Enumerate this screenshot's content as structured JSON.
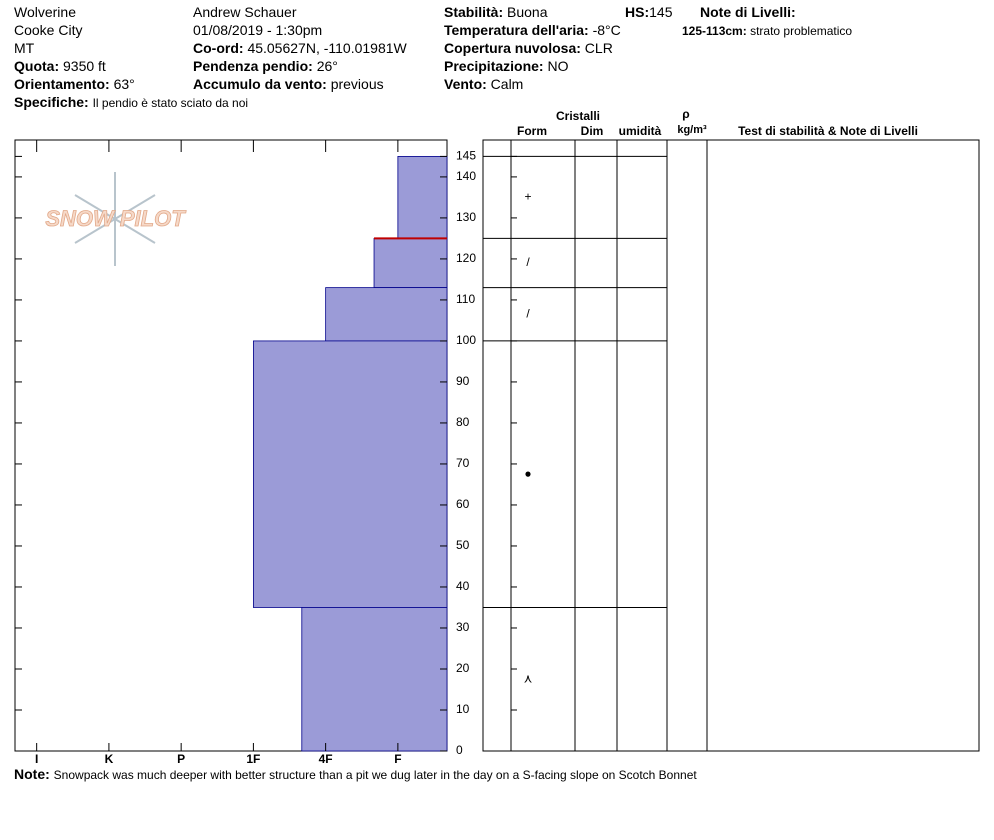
{
  "header": {
    "location": "Wolverine",
    "region": "Cooke City",
    "state": "MT",
    "elevation_label": "Quota:",
    "elevation": "9350 ft",
    "aspect_label": "Orientamento:",
    "aspect": "63°",
    "specifics_label": "Specifiche:",
    "specifics": "Il pendio è stato sciato da noi",
    "observer": "Andrew Schauer",
    "datetime": "01/08/2019 - 1:30pm",
    "coord_label": "Co-ord:",
    "coord": "45.05627N, -110.01981W",
    "slope_label": "Pendenza pendio:",
    "slope": "26°",
    "wind_loading_label": "Accumulo da vento:",
    "wind_loading": "previous",
    "stability_label": "Stabilità:",
    "stability": "Buona",
    "air_temp_label": "Temperatura dell'aria:",
    "air_temp": "-8°C",
    "cloud_label": "Copertura nuvolosa:",
    "cloud": "CLR",
    "precip_label": "Precipitazione:",
    "precip": "NO",
    "wind_label": "Vento:",
    "wind": "Calm",
    "hs_label": "HS:",
    "hs": 145,
    "layer_notes_label": "Note di Livelli:",
    "layer_note_range": "125-113cm:",
    "layer_note": "strato problematico"
  },
  "logo": "SNOW PILOT",
  "table_headers": {
    "crystals": "Cristalli",
    "form": "Form",
    "size": "Dim",
    "moisture": "umidità",
    "density": "ρ",
    "density_unit": "kg/m³",
    "tests": "Test di stabilità & Note di Livelli"
  },
  "footer": {
    "label": "Note:",
    "text": "Snowpack was much deeper with better structure than a pit we dug later in the day on a S-facing slope on Scotch Bonnet"
  },
  "chart_data": {
    "type": "snow-profile",
    "layer_tops": [
      145,
      125,
      113,
      100,
      35
    ],
    "layer_bottoms": [
      125,
      113,
      100,
      35,
      0
    ],
    "hardness": [
      6,
      5.67,
      5,
      4,
      4.67
    ],
    "forms": [
      "+",
      "/",
      "/",
      "●",
      "⋏"
    ],
    "problem_layer": [
      125,
      113
    ],
    "color": "#9b9bd7",
    "edge_color": "#00008b",
    "problem_color": "#c00000",
    "xlim": [
      0.7,
      6.68
    ],
    "xticks": [
      {
        "value": 1,
        "label": "I"
      },
      {
        "value": 2,
        "label": "K"
      },
      {
        "value": 3,
        "label": "P"
      },
      {
        "value": 4,
        "label": "1F"
      },
      {
        "value": 5,
        "label": "4F"
      },
      {
        "value": 6,
        "label": "F"
      }
    ],
    "ylim": [
      0,
      149
    ],
    "yticks": [
      0,
      10,
      20,
      30,
      40,
      50,
      60,
      70,
      80,
      90,
      100,
      110,
      120,
      130,
      140,
      145
    ]
  }
}
